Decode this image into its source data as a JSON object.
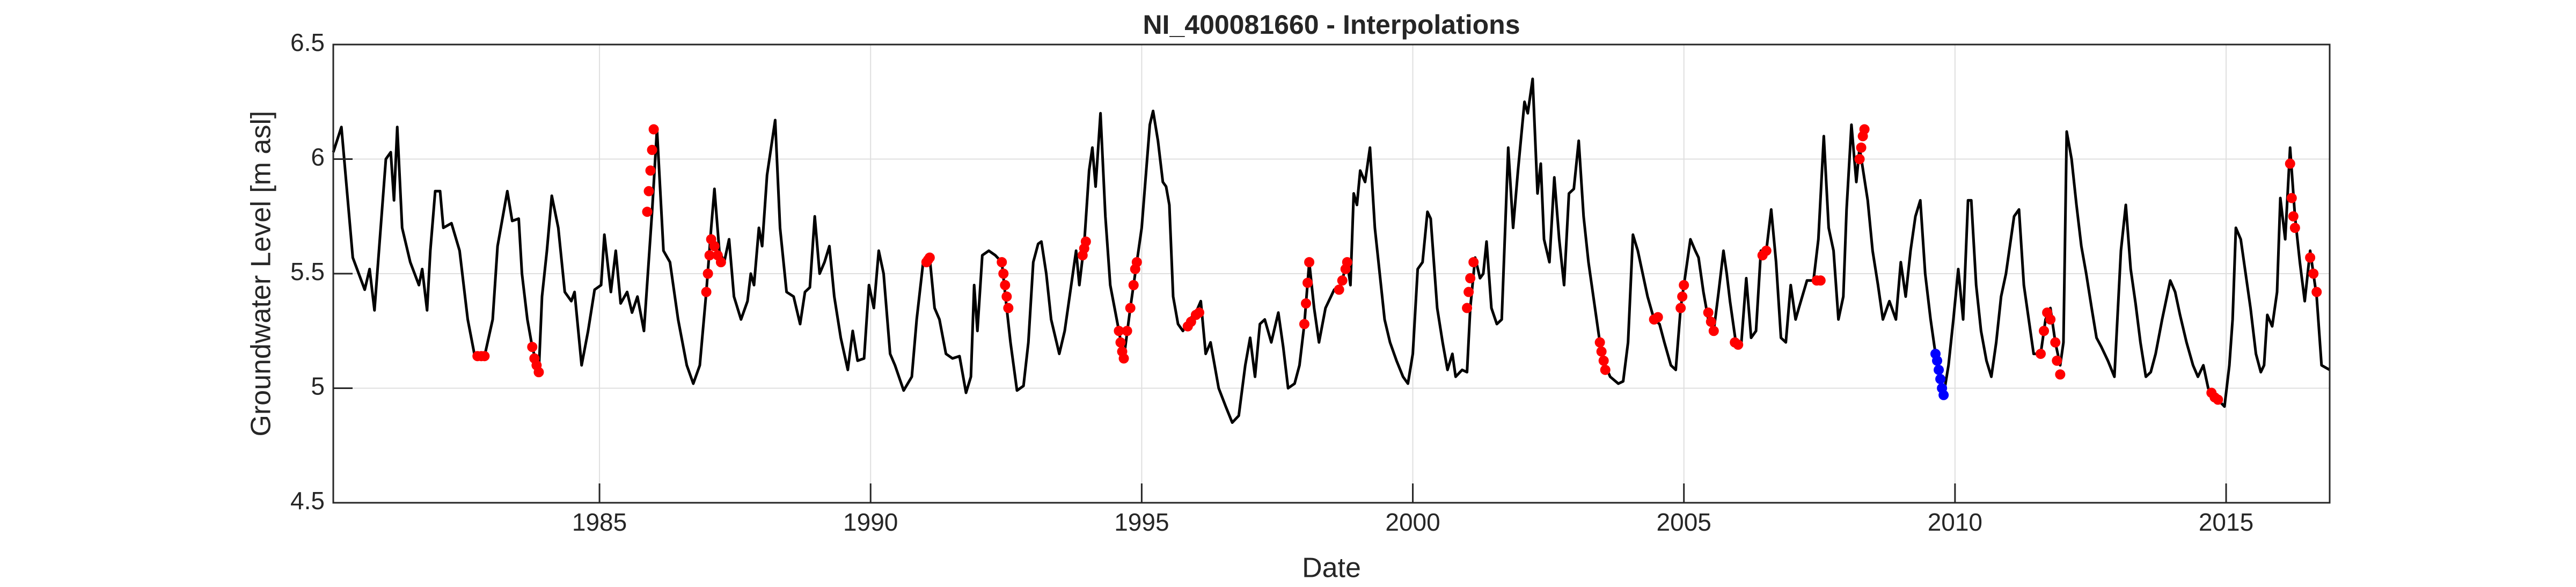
{
  "chart_data": {
    "type": "line",
    "title": "NI_400081660 - Interpolations",
    "xlabel": "Date",
    "ylabel": "Groundwater Level [m asl]",
    "xlim": [
      1980.09,
      2016.91
    ],
    "ylim": [
      4.5,
      6.5
    ],
    "xticks": [
      1985,
      1990,
      1995,
      2000,
      2005,
      2010,
      2015
    ],
    "yticks": [
      4.5,
      5,
      5.5,
      6,
      6.5
    ],
    "grid": true,
    "series": [
      {
        "mode": "line",
        "color": "#000000",
        "x": [
          1980.09,
          1980.24,
          1980.45,
          1980.67,
          1980.76,
          1980.85,
          1981.06,
          1981.15,
          1981.21,
          1981.27,
          1981.36,
          1981.51,
          1981.67,
          1981.73,
          1981.82,
          1981.88,
          1981.97,
          1982.06,
          1982.12,
          1982.27,
          1982.42,
          1982.57,
          1982.7,
          1982.88,
          1983.03,
          1983.12,
          1983.18,
          1983.3,
          1983.39,
          1983.51,
          1983.57,
          1983.67,
          1983.76,
          1983.88,
          1983.94,
          1984.03,
          1984.12,
          1984.24,
          1984.36,
          1984.48,
          1984.54,
          1984.67,
          1984.79,
          1984.91,
          1985.03,
          1985.09,
          1985.21,
          1985.3,
          1985.39,
          1985.51,
          1985.6,
          1985.7,
          1985.82,
          1985.97,
          1986.06,
          1986.18,
          1986.3,
          1986.45,
          1986.61,
          1986.73,
          1986.85,
          1986.97,
          1987.06,
          1987.12,
          1987.21,
          1987.3,
          1987.39,
          1987.48,
          1987.61,
          1987.73,
          1987.79,
          1987.85,
          1987.94,
          1988.0,
          1988.09,
          1988.24,
          1988.33,
          1988.45,
          1988.58,
          1988.7,
          1988.79,
          1988.88,
          1988.97,
          1989.06,
          1989.15,
          1989.24,
          1989.33,
          1989.45,
          1989.58,
          1989.67,
          1989.76,
          1989.88,
          1989.97,
          1990.06,
          1990.15,
          1990.24,
          1990.36,
          1990.45,
          1990.61,
          1990.76,
          1990.85,
          1990.97,
          1991.09,
          1991.18,
          1991.27,
          1991.39,
          1991.51,
          1991.64,
          1991.76,
          1991.85,
          1991.91,
          1991.97,
          1992.06,
          1992.18,
          1992.3,
          1992.42,
          1992.51,
          1992.58,
          1992.7,
          1992.82,
          1992.91,
          1993.0,
          1993.09,
          1993.15,
          1993.24,
          1993.33,
          1993.48,
          1993.58,
          1993.7,
          1993.79,
          1993.85,
          1993.94,
          1994.03,
          1994.09,
          1994.15,
          1994.24,
          1994.33,
          1994.42,
          1994.58,
          1994.67,
          1994.79,
          1994.91,
          1995.0,
          1995.15,
          1995.21,
          1995.3,
          1995.39,
          1995.45,
          1995.51,
          1995.58,
          1995.67,
          1995.76,
          1995.88,
          1996.0,
          1996.09,
          1996.18,
          1996.27,
          1996.42,
          1996.55,
          1996.67,
          1996.79,
          1996.91,
          1997.0,
          1997.09,
          1997.18,
          1997.27,
          1997.39,
          1997.52,
          1997.61,
          1997.7,
          1997.82,
          1997.91,
          1998.0,
          1998.09,
          1998.18,
          1998.27,
          1998.39,
          1998.55,
          1998.67,
          1998.79,
          1998.85,
          1998.91,
          1998.97,
          1999.03,
          1999.12,
          1999.21,
          1999.3,
          1999.39,
          1999.48,
          1999.58,
          1999.7,
          1999.82,
          1999.91,
          2000.0,
          2000.09,
          2000.18,
          2000.27,
          2000.33,
          2000.45,
          2000.55,
          2000.64,
          2000.73,
          2000.79,
          2000.91,
          2001.0,
          2001.06,
          2001.15,
          2001.24,
          2001.3,
          2001.36,
          2001.45,
          2001.55,
          2001.64,
          2001.76,
          2001.85,
          2001.94,
          2002.06,
          2002.12,
          2002.21,
          2002.3,
          2002.36,
          2002.42,
          2002.52,
          2002.61,
          2002.7,
          2002.79,
          2002.88,
          2002.97,
          2003.06,
          2003.15,
          2003.24,
          2003.33,
          2003.45,
          2003.55,
          2003.64,
          2003.79,
          2003.88,
          2003.97,
          2004.06,
          2004.15,
          2004.24,
          2004.33,
          2004.45,
          2004.55,
          2004.64,
          2004.76,
          2004.85,
          2004.94,
          2005.03,
          2005.12,
          2005.21,
          2005.27,
          2005.36,
          2005.45,
          2005.55,
          2005.64,
          2005.73,
          2005.79,
          2005.85,
          2005.97,
          2006.06,
          2006.15,
          2006.24,
          2006.33,
          2006.42,
          2006.52,
          2006.61,
          2006.7,
          2006.79,
          2006.88,
          2006.97,
          2007.06,
          2007.12,
          2007.27,
          2007.39,
          2007.48,
          2007.58,
          2007.67,
          2007.76,
          2007.85,
          2007.94,
          2008.0,
          2008.09,
          2008.18,
          2008.24,
          2008.39,
          2008.48,
          2008.58,
          2008.67,
          2008.79,
          2008.91,
          2009.0,
          2009.09,
          2009.18,
          2009.27,
          2009.36,
          2009.45,
          2009.55,
          2009.64,
          2009.79,
          2009.88,
          2009.97,
          2010.06,
          2010.15,
          2010.24,
          2010.3,
          2010.39,
          2010.48,
          2010.58,
          2010.67,
          2010.76,
          2010.85,
          2010.94,
          2011.09,
          2011.18,
          2011.27,
          2011.36,
          2011.45,
          2011.58,
          2011.67,
          2011.76,
          2011.85,
          2011.94,
          2012.0,
          2012.06,
          2012.15,
          2012.24,
          2012.33,
          2012.42,
          2012.52,
          2012.61,
          2012.7,
          2012.82,
          2012.94,
          2013.06,
          2013.15,
          2013.24,
          2013.33,
          2013.42,
          2013.52,
          2013.61,
          2013.7,
          2013.82,
          2013.97,
          2014.06,
          2014.15,
          2014.27,
          2014.39,
          2014.48,
          2014.58,
          2014.67,
          2014.76,
          2014.85,
          2014.97,
          2015.06,
          2015.12,
          2015.18,
          2015.27,
          2015.36,
          2015.45,
          2015.55,
          2015.64,
          2015.7,
          2015.76,
          2015.85,
          2015.94,
          2016.0,
          2016.09,
          2016.18,
          2016.27,
          2016.36,
          2016.45,
          2016.55,
          2016.67,
          2016.76,
          2016.91
        ],
        "values": [
          6.03,
          6.14,
          5.57,
          5.43,
          5.52,
          5.34,
          6.0,
          6.03,
          5.82,
          6.14,
          5.7,
          5.55,
          5.45,
          5.52,
          5.34,
          5.6,
          5.86,
          5.86,
          5.7,
          5.72,
          5.6,
          5.3,
          5.14,
          5.14,
          5.3,
          5.62,
          5.7,
          5.86,
          5.73,
          5.74,
          5.5,
          5.3,
          5.18,
          5.07,
          5.4,
          5.6,
          5.84,
          5.7,
          5.42,
          5.38,
          5.42,
          5.1,
          5.25,
          5.43,
          5.45,
          5.67,
          5.42,
          5.6,
          5.37,
          5.42,
          5.33,
          5.4,
          5.25,
          5.77,
          6.13,
          5.6,
          5.55,
          5.3,
          5.1,
          5.02,
          5.1,
          5.42,
          5.7,
          5.87,
          5.6,
          5.55,
          5.65,
          5.4,
          5.3,
          5.38,
          5.5,
          5.45,
          5.7,
          5.62,
          5.93,
          6.17,
          5.7,
          5.42,
          5.4,
          5.28,
          5.42,
          5.44,
          5.75,
          5.5,
          5.55,
          5.62,
          5.4,
          5.22,
          5.08,
          5.25,
          5.12,
          5.13,
          5.45,
          5.35,
          5.6,
          5.5,
          5.15,
          5.1,
          4.99,
          5.05,
          5.3,
          5.55,
          5.57,
          5.35,
          5.3,
          5.15,
          5.13,
          5.14,
          4.98,
          5.05,
          5.45,
          5.25,
          5.58,
          5.6,
          5.58,
          5.55,
          5.35,
          5.2,
          4.99,
          5.01,
          5.2,
          5.55,
          5.63,
          5.64,
          5.5,
          5.3,
          5.15,
          5.25,
          5.45,
          5.6,
          5.45,
          5.63,
          5.95,
          6.05,
          5.88,
          6.2,
          5.75,
          5.45,
          5.25,
          5.13,
          5.35,
          5.55,
          5.7,
          6.15,
          6.21,
          6.08,
          5.9,
          5.88,
          5.8,
          5.4,
          5.28,
          5.25,
          5.3,
          5.33,
          5.38,
          5.15,
          5.2,
          5.0,
          4.92,
          4.85,
          4.88,
          5.1,
          5.22,
          5.05,
          5.28,
          5.3,
          5.2,
          5.33,
          5.18,
          5.0,
          5.02,
          5.1,
          5.28,
          5.55,
          5.35,
          5.2,
          5.35,
          5.43,
          5.45,
          5.55,
          5.45,
          5.85,
          5.8,
          5.95,
          5.9,
          6.05,
          5.7,
          5.5,
          5.3,
          5.2,
          5.12,
          5.05,
          5.02,
          5.15,
          5.52,
          5.55,
          5.77,
          5.74,
          5.35,
          5.2,
          5.08,
          5.15,
          5.05,
          5.08,
          5.07,
          5.35,
          5.57,
          5.48,
          5.5,
          5.64,
          5.35,
          5.28,
          5.3,
          6.05,
          5.7,
          5.95,
          6.25,
          6.2,
          6.35,
          5.85,
          5.98,
          5.65,
          5.55,
          5.92,
          5.65,
          5.45,
          5.85,
          5.87,
          6.08,
          5.75,
          5.55,
          5.4,
          5.2,
          5.1,
          5.05,
          5.02,
          5.03,
          5.2,
          5.67,
          5.6,
          5.5,
          5.4,
          5.3,
          5.28,
          5.2,
          5.1,
          5.08,
          5.35,
          5.5,
          5.65,
          5.6,
          5.57,
          5.42,
          5.3,
          5.25,
          5.42,
          5.6,
          5.5,
          5.38,
          5.18,
          5.2,
          5.48,
          5.22,
          5.25,
          5.6,
          5.6,
          5.78,
          5.55,
          5.22,
          5.2,
          5.45,
          5.3,
          5.35,
          5.47,
          5.47,
          5.65,
          6.1,
          5.7,
          5.6,
          5.3,
          5.4,
          5.78,
          6.15,
          5.9,
          6.05,
          5.82,
          5.6,
          5.45,
          5.3,
          5.38,
          5.3,
          5.55,
          5.4,
          5.6,
          5.75,
          5.82,
          5.5,
          5.3,
          5.15,
          4.97,
          5.1,
          5.3,
          5.52,
          5.3,
          5.82,
          5.82,
          5.45,
          5.25,
          5.12,
          5.05,
          5.2,
          5.4,
          5.5,
          5.75,
          5.78,
          5.45,
          5.3,
          5.15,
          5.15,
          5.3,
          5.35,
          5.2,
          5.1,
          5.2,
          6.12,
          6.0,
          5.8,
          5.62,
          5.5,
          5.35,
          5.22,
          5.18,
          5.12,
          5.05,
          5.6,
          5.8,
          5.52,
          5.37,
          5.2,
          5.05,
          5.07,
          5.15,
          5.3,
          5.47,
          5.42,
          5.32,
          5.2,
          5.1,
          5.05,
          5.1,
          5.0,
          4.97,
          4.95,
          4.92,
          5.1,
          5.3,
          5.7,
          5.65,
          5.5,
          5.35,
          5.15,
          5.07,
          5.1,
          5.32,
          5.27,
          5.42,
          5.83,
          5.65,
          6.05,
          5.75,
          5.55,
          5.38,
          5.6,
          5.4,
          5.1,
          5.08
        ]
      },
      {
        "mode": "markers",
        "color": "#ff0000",
        "x": [
          1982.75,
          1982.82,
          1982.88,
          1983.76,
          1983.8,
          1983.84,
          1983.88,
          1985.88,
          1985.91,
          1985.94,
          1985.97,
          1986.0,
          1986.97,
          1987.0,
          1987.03,
          1987.06,
          1987.12,
          1987.18,
          1987.24,
          1991.03,
          1991.06,
          1991.09,
          1992.42,
          1992.45,
          1992.48,
          1992.51,
          1992.54,
          1993.91,
          1993.94,
          1993.97,
          1994.58,
          1994.61,
          1994.64,
          1994.67,
          1994.73,
          1994.79,
          1994.85,
          1994.88,
          1994.91,
          1995.85,
          1995.91,
          1996.0,
          1996.06,
          1998.0,
          1998.03,
          1998.06,
          1998.09,
          1998.64,
          1998.7,
          1998.76,
          1998.79,
          2001.0,
          2001.03,
          2001.06,
          2001.12,
          2003.45,
          2003.48,
          2003.52,
          2003.55,
          2004.45,
          2004.52,
          2004.94,
          2004.97,
          2005.0,
          2005.45,
          2005.5,
          2005.55,
          2005.94,
          2006.0,
          2006.45,
          2006.52,
          2007.45,
          2007.52,
          2008.24,
          2008.27,
          2008.3,
          2008.33,
          2011.58,
          2011.64,
          2011.7,
          2011.76,
          2011.85,
          2011.88,
          2011.94,
          2014.73,
          2014.79,
          2014.85,
          2016.18,
          2016.21,
          2016.24,
          2016.27,
          2016.55,
          2016.61,
          2016.67
        ],
        "values": [
          5.14,
          5.14,
          5.14,
          5.18,
          5.13,
          5.1,
          5.07,
          5.77,
          5.86,
          5.95,
          6.04,
          6.13,
          5.42,
          5.5,
          5.58,
          5.65,
          5.62,
          5.58,
          5.55,
          5.55,
          5.56,
          5.57,
          5.55,
          5.5,
          5.45,
          5.4,
          5.35,
          5.58,
          5.61,
          5.64,
          5.25,
          5.2,
          5.16,
          5.13,
          5.25,
          5.35,
          5.45,
          5.52,
          5.55,
          5.27,
          5.29,
          5.32,
          5.33,
          5.28,
          5.37,
          5.46,
          5.55,
          5.43,
          5.47,
          5.52,
          5.55,
          5.35,
          5.42,
          5.48,
          5.55,
          5.2,
          5.16,
          5.12,
          5.08,
          5.3,
          5.31,
          5.35,
          5.4,
          5.45,
          5.33,
          5.29,
          5.25,
          5.2,
          5.19,
          5.58,
          5.6,
          5.47,
          5.47,
          6.0,
          6.05,
          6.1,
          6.13,
          5.15,
          5.25,
          5.33,
          5.3,
          5.2,
          5.12,
          5.06,
          4.98,
          4.96,
          4.95,
          5.98,
          5.83,
          5.75,
          5.7,
          5.57,
          5.5,
          5.42
        ]
      },
      {
        "mode": "markers",
        "color": "#0000ff",
        "x": [
          2009.64,
          2009.67,
          2009.7,
          2009.73,
          2009.76,
          2009.79
        ],
        "values": [
          5.15,
          5.12,
          5.08,
          5.04,
          5.0,
          4.97
        ]
      }
    ]
  }
}
